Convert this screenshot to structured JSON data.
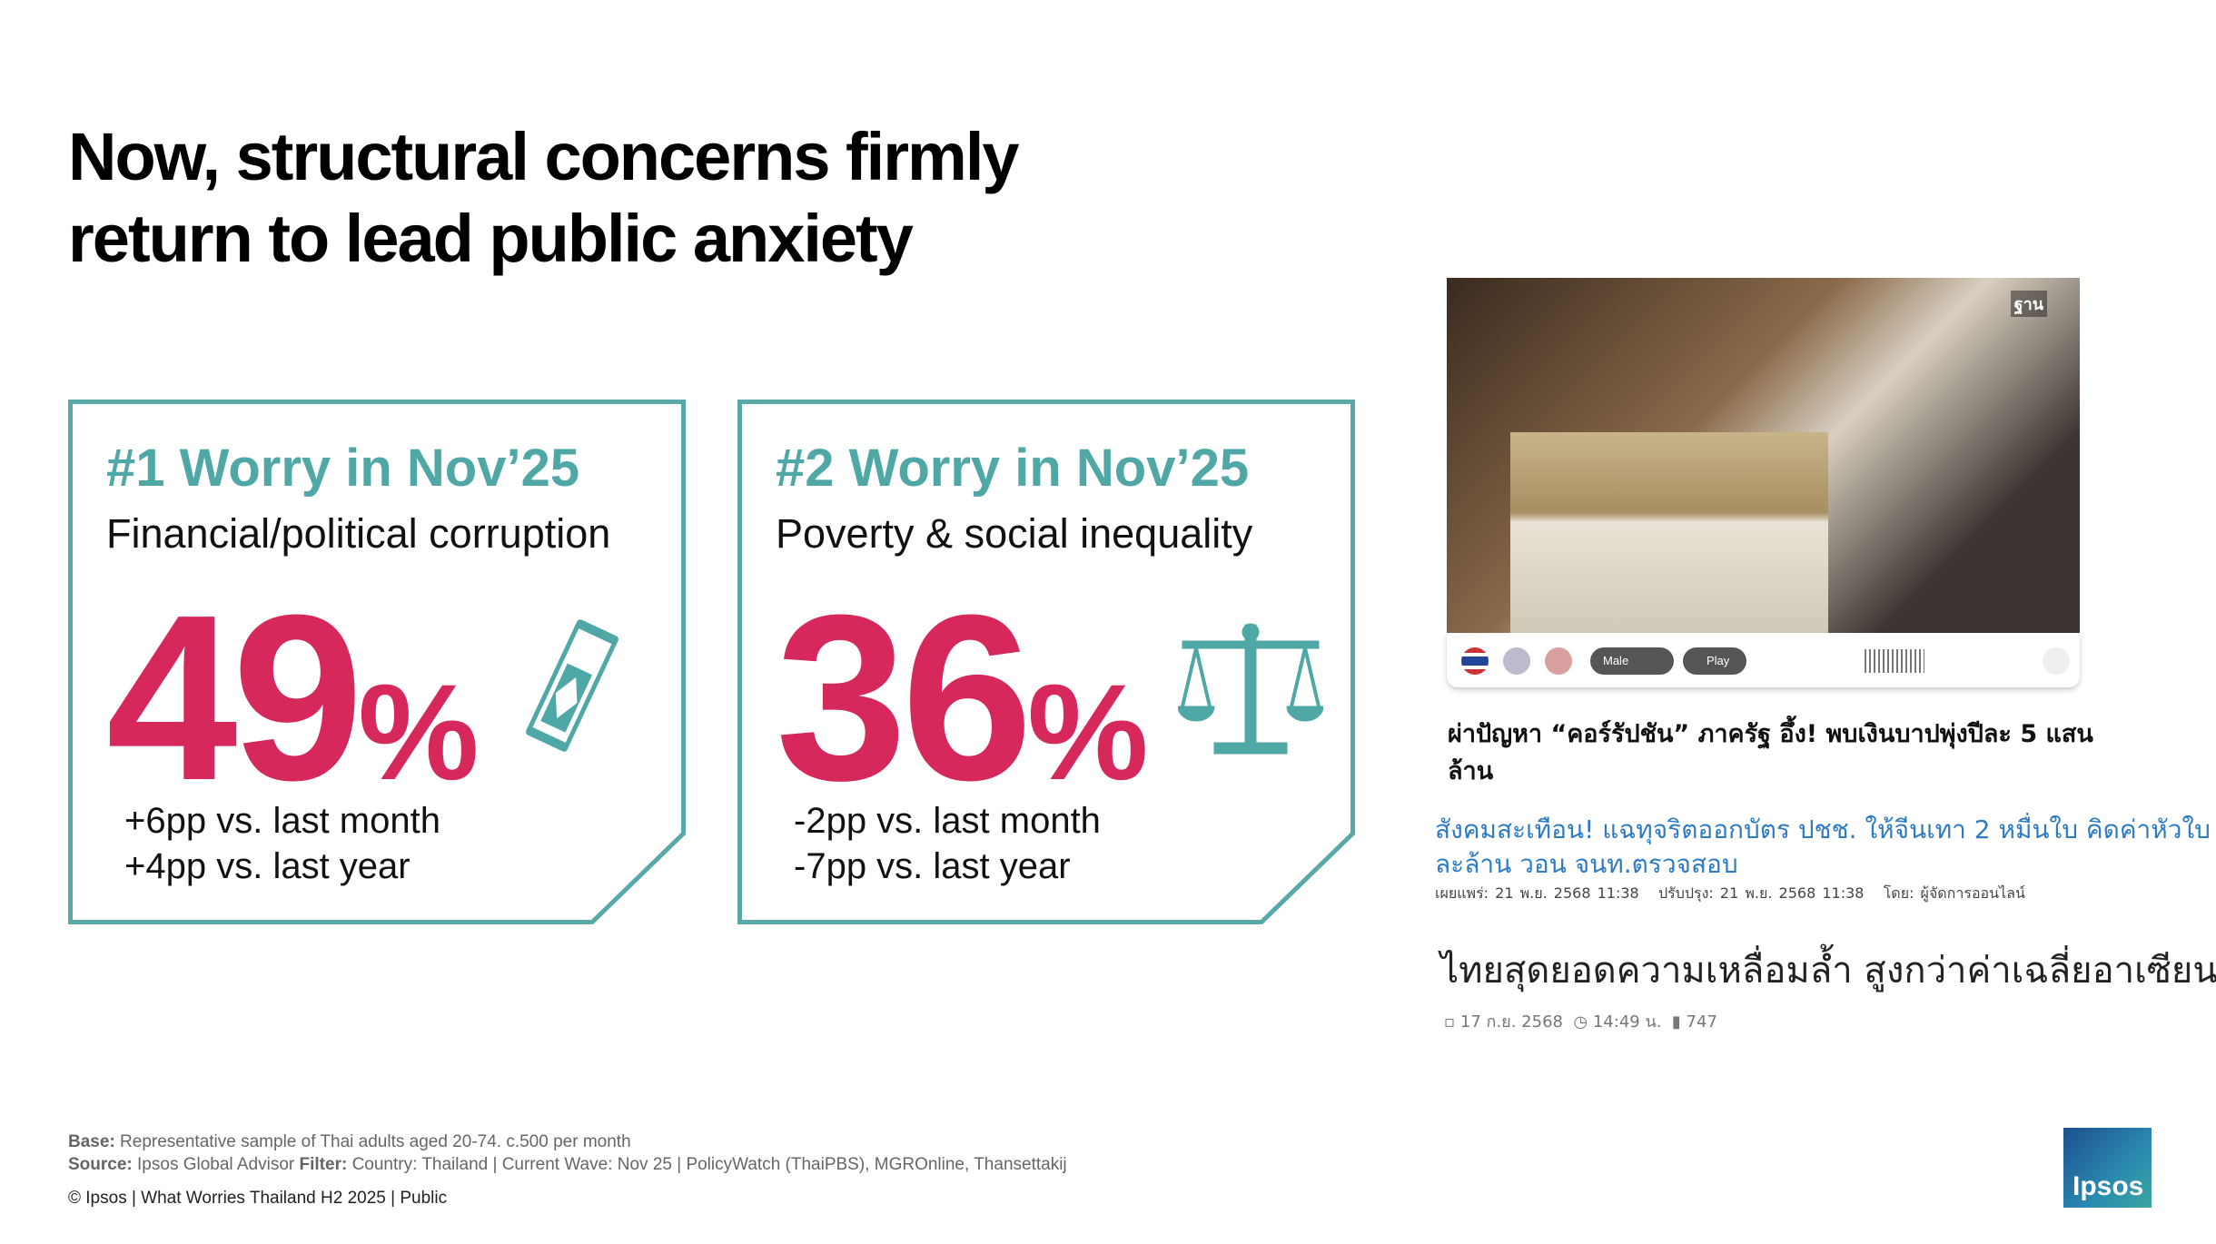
{
  "header": {
    "title_lines": [
      "Now, structural concerns firmly",
      "return to lead public anxiety"
    ]
  },
  "cards": [
    {
      "rank": "#1 Worry in Nov’25",
      "topic": "Financial/political corruption",
      "number": "49",
      "unit": "%",
      "changes": [
        "+6pp vs. last month",
        "+4pp vs. last year"
      ]
    },
    {
      "rank": "#2 Worry in Nov’25",
      "topic": "Poverty & social inequality",
      "number": "36",
      "unit": "%",
      "changes": [
        "-2pp vs. last month",
        "-7pp vs. last year"
      ]
    }
  ],
  "clippings": {
    "watermark": "ฐาน",
    "player": {
      "voice": "Male",
      "play": "Play"
    },
    "headline1": "ผ่าปัญหา “คอร์รัปชัน” ภาครัฐ อึ้ง! พบเงินบาปพุ่งปีละ 5 แสนล้าน",
    "headline2": "สังคมสะเทือน! แฉทุจริตออกบัตร ปชช. ให้จีนเทา 2 หมื่นใบ คิดค่าหัวใบละล้าน วอน จนท.ตรวจสอบ",
    "meta2": [
      "เผยแพร่: 21 พ.ย. 2568 11:38",
      "ปรับปรุง: 21 พ.ย. 2568 11:38",
      "โดย: ผู้จัดการออนไลน์"
    ],
    "headline3": "ไทยสุดยอดความเหลื่อมล้ำ สูงกว่าค่าเฉลี่ยอาเซียน",
    "meta3": [
      "17 ก.ย. 2568",
      "14:49 น.",
      "747"
    ]
  },
  "footer": {
    "base_label": "Base:",
    "base": "Representative sample of Thai adults aged 20-74. c.500 per month",
    "source_label": "Source:",
    "source": "Ipsos Global Advisor",
    "filter_label": "Filter:",
    "filter": "Country: Thailand | Current Wave: Nov 25 | PolicyWatch (ThaiPBS), MGROnline, Thansettakij",
    "copyright": "© Ipsos | What Worries Thailand H2 2025 | Public",
    "logo": "Ipsos"
  }
}
